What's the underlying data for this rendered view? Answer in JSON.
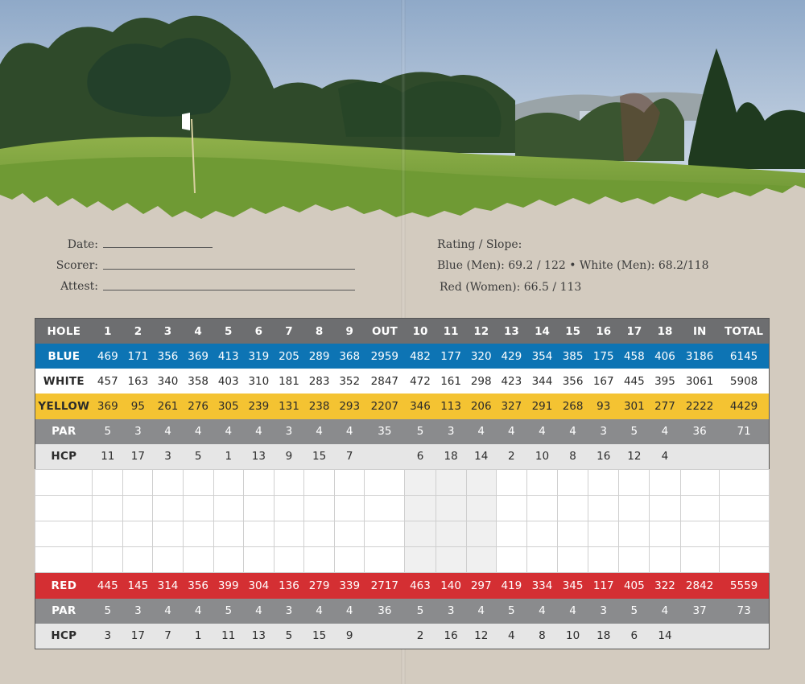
{
  "form": {
    "date_label": "Date:",
    "scorer_label": "Scorer:",
    "attest_label": "Attest:"
  },
  "rating": {
    "title": "Rating / Slope:",
    "line1": "Blue (Men): 69.2 / 122  •  White (Men): 68.2/118",
    "line2": "Red (Women): 66.5 / 113"
  },
  "colors": {
    "blue": "#0d74b4",
    "yellow": "#f4c332",
    "red": "#d42f33",
    "header_gray": "#6d6e70",
    "par_gray": "#8a8b8d",
    "hcp_light": "#e6e6e6",
    "page_background": "#d3cbbf"
  },
  "table": {
    "header": [
      "HOLE",
      "1",
      "2",
      "3",
      "4",
      "5",
      "6",
      "7",
      "8",
      "9",
      "OUT",
      "10",
      "11",
      "12",
      "13",
      "14",
      "15",
      "16",
      "17",
      "18",
      "IN",
      "TOTAL"
    ],
    "blue": [
      "BLUE",
      "469",
      "171",
      "356",
      "369",
      "413",
      "319",
      "205",
      "289",
      "368",
      "2959",
      "482",
      "177",
      "320",
      "429",
      "354",
      "385",
      "175",
      "458",
      "406",
      "3186",
      "6145"
    ],
    "white": [
      "WHITE",
      "457",
      "163",
      "340",
      "358",
      "403",
      "310",
      "181",
      "283",
      "352",
      "2847",
      "472",
      "161",
      "298",
      "423",
      "344",
      "356",
      "167",
      "445",
      "395",
      "3061",
      "5908"
    ],
    "yellow": [
      "YELLOW",
      "369",
      "95",
      "261",
      "276",
      "305",
      "239",
      "131",
      "238",
      "293",
      "2207",
      "346",
      "113",
      "206",
      "327",
      "291",
      "268",
      "93",
      "301",
      "277",
      "2222",
      "4429"
    ],
    "par_men": [
      "PAR",
      "5",
      "3",
      "4",
      "4",
      "4",
      "4",
      "3",
      "4",
      "4",
      "35",
      "5",
      "3",
      "4",
      "4",
      "4",
      "4",
      "3",
      "5",
      "4",
      "36",
      "71"
    ],
    "hcp_men": [
      "HCP",
      "11",
      "17",
      "3",
      "5",
      "1",
      "13",
      "9",
      "15",
      "7",
      "",
      "6",
      "18",
      "14",
      "2",
      "10",
      "8",
      "16",
      "12",
      "4",
      "",
      ""
    ],
    "red": [
      "RED",
      "445",
      "145",
      "314",
      "356",
      "399",
      "304",
      "136",
      "279",
      "339",
      "2717",
      "463",
      "140",
      "297",
      "419",
      "334",
      "345",
      "117",
      "405",
      "322",
      "2842",
      "5559"
    ],
    "par_women": [
      "PAR",
      "5",
      "3",
      "4",
      "4",
      "5",
      "4",
      "3",
      "4",
      "4",
      "36",
      "5",
      "3",
      "4",
      "5",
      "4",
      "4",
      "3",
      "5",
      "4",
      "37",
      "73"
    ],
    "hcp_women": [
      "HCP",
      "3",
      "17",
      "7",
      "1",
      "11",
      "13",
      "5",
      "15",
      "9",
      "",
      "2",
      "16",
      "12",
      "4",
      "8",
      "10",
      "18",
      "6",
      "14",
      "",
      ""
    ]
  }
}
